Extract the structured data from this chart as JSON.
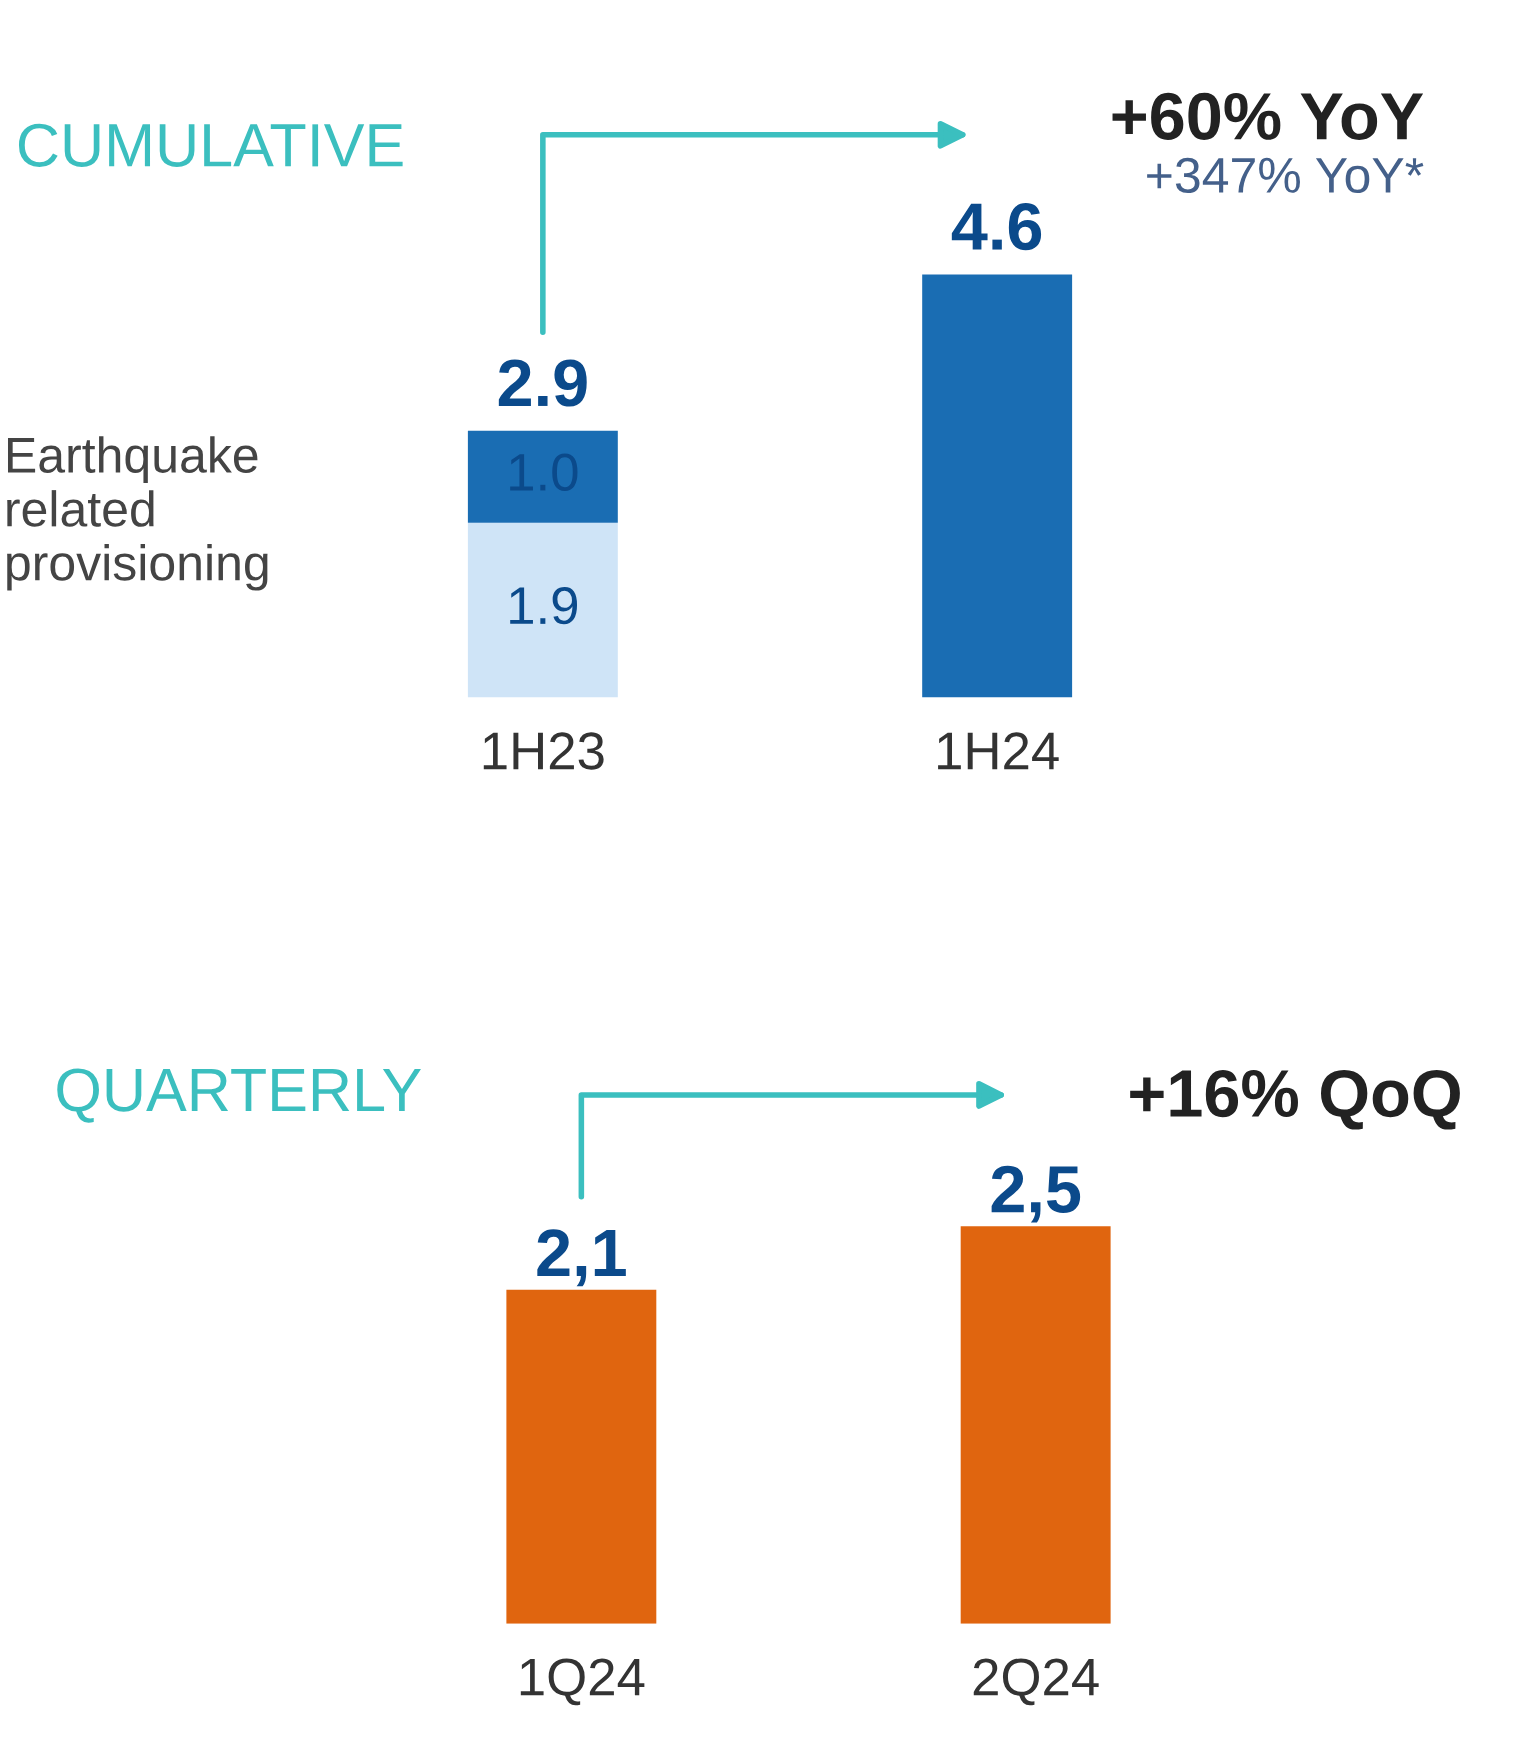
{
  "chart_data": [
    {
      "type": "bar",
      "title": "CUMULATIVE",
      "categories": [
        "1H23",
        "1H24"
      ],
      "stacked": true,
      "legend": "left",
      "series": [
        {
          "name": "Earthquake related provisioning",
          "color": "#cfe4f7",
          "values": [
            1.9,
            null
          ],
          "value_labels": [
            "1.9",
            null
          ]
        },
        {
          "color": "#1a6db3",
          "values": [
            1.0,
            4.6
          ],
          "value_labels": [
            "1.0",
            null
          ]
        }
      ],
      "totals": [
        "2.9",
        "4.6"
      ],
      "annotations": [
        "+60% YoY",
        "+347% YoY*"
      ]
    },
    {
      "type": "bar",
      "title": "QUARTERLY",
      "categories": [
        "1Q24",
        "2Q24"
      ],
      "color": "#e0650f",
      "values": [
        2.1,
        2.5
      ],
      "value_labels": [
        "2,1",
        "2,5"
      ],
      "annotations": [
        "+16% QoQ"
      ]
    }
  ]
}
